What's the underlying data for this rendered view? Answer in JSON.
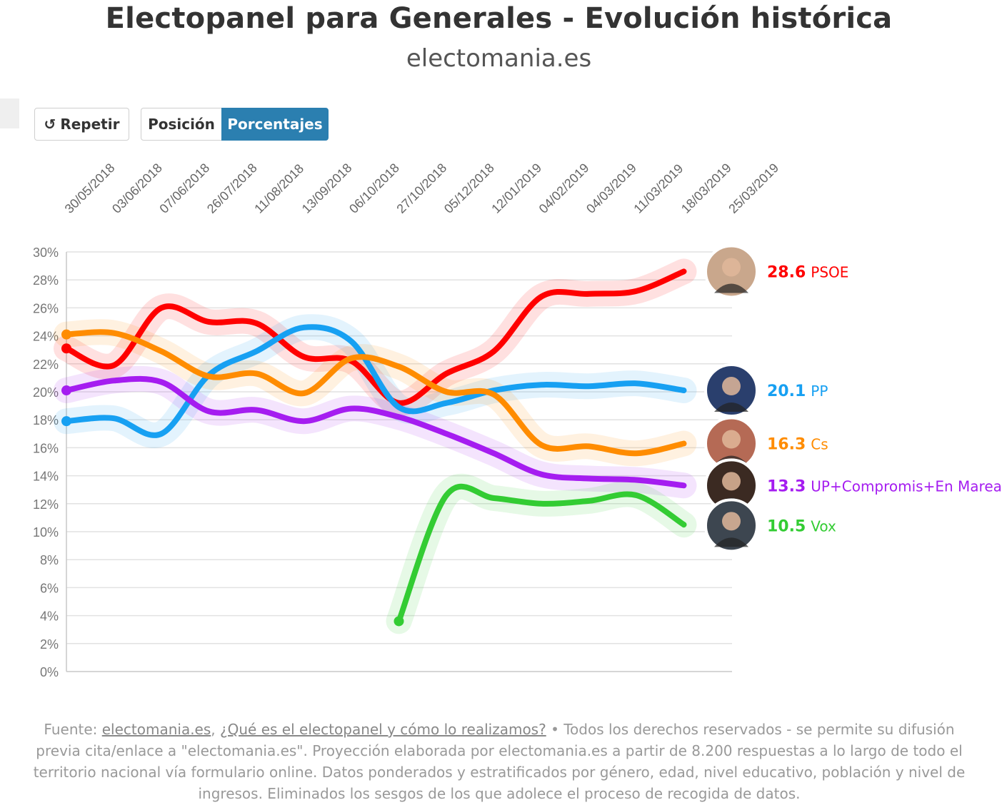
{
  "title": "Electopanel para Generales - Evolución histórica",
  "subtitle": "electomania.es",
  "controls": {
    "repetir_label": "Repetir",
    "posicion_label": "Posición",
    "porcentajes_label": "Porcentajes",
    "active": "Porcentajes"
  },
  "footer": {
    "prefix": "Fuente: ",
    "link1": "electomania.es",
    "sep": ", ",
    "link2": "¿Qué es el electopanel y cómo lo realizamos?",
    "text": " • Todos los derechos reservados - se permite su difusión previa cita/enlace a \"electomania.es\". Proyección elaborada por electomania.es a partir de 8.200 respuestas a lo largo de todo el territorio nacional vía formulario online. Datos ponderados y estratificados por género, edad, nivel educativo, población y nivel de ingresos. Eliminados los sesgos de los que adolece el proceso de recogida de datos."
  },
  "chart_data": {
    "type": "line",
    "x": [
      "30/05/2018",
      "03/06/2018",
      "07/06/2018",
      "26/07/2018",
      "11/08/2018",
      "13/09/2018",
      "06/10/2018",
      "27/10/2018",
      "05/12/2018",
      "12/01/2019",
      "04/02/2019",
      "04/03/2019",
      "11/03/2019",
      "18/03/2019",
      "25/03/2019"
    ],
    "ylim": [
      0,
      30
    ],
    "yticks": [
      "0%",
      "2%",
      "4%",
      "6%",
      "8%",
      "10%",
      "12%",
      "14%",
      "16%",
      "18%",
      "20%",
      "22%",
      "24%",
      "26%",
      "28%",
      "30%"
    ],
    "grid": true,
    "series": [
      {
        "name": "PSOE",
        "label": "28.6",
        "color": "#ff0000",
        "photo_color": "#c9a78c",
        "values": [
          23.1,
          21.9,
          26.0,
          25.0,
          24.9,
          22.5,
          22.2,
          19.2,
          21.3,
          22.9,
          26.8,
          27.0,
          27.2,
          28.6,
          null
        ]
      },
      {
        "name": "PP",
        "label": "20.1",
        "color": "#17a0f2",
        "photo_color": "#2a3f6d",
        "values": [
          17.9,
          18.1,
          17.0,
          21.2,
          22.9,
          24.6,
          23.6,
          18.9,
          19.2,
          20.1,
          20.5,
          20.4,
          20.6,
          20.1,
          null
        ]
      },
      {
        "name": "Cs",
        "label": "16.3",
        "color": "#ff8c00",
        "photo_color": "#b56a55",
        "values": [
          24.1,
          24.2,
          22.9,
          21.1,
          21.3,
          19.9,
          22.4,
          21.8,
          20.0,
          19.8,
          16.2,
          16.1,
          15.6,
          16.3,
          null
        ]
      },
      {
        "name": "UP+Compromis+En Marea",
        "label": "13.3",
        "color": "#a51df0",
        "photo_color": "#3b2a22",
        "values": [
          20.1,
          20.8,
          20.7,
          18.6,
          18.7,
          17.9,
          18.8,
          18.2,
          17.0,
          15.6,
          14.1,
          13.8,
          13.7,
          13.3,
          null
        ]
      },
      {
        "name": "Vox",
        "label": "10.5",
        "color": "#33cc33",
        "photo_color": "#3d4650",
        "values": [
          null,
          null,
          null,
          null,
          null,
          null,
          null,
          3.6,
          12.6,
          12.4,
          12.0,
          12.2,
          12.6,
          10.5,
          null
        ]
      }
    ]
  }
}
